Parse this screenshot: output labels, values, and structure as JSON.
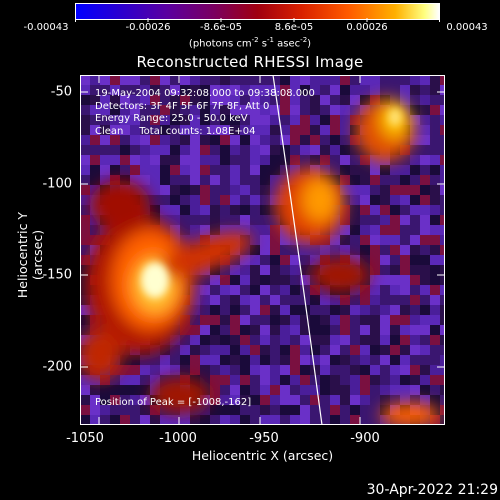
{
  "colorbar": {
    "ticks": [
      "-0.00043",
      "-0.00026",
      "-8.6e-05",
      "8.6e-05",
      "0.00026",
      "0.00043"
    ],
    "units_prefix": "(photons cm",
    "units_exp1": "-2",
    "units_mid": " s",
    "units_exp2": "-1",
    "units_mid2": " asec",
    "units_exp3": "-2",
    "units_suffix": ")"
  },
  "title": "Reconstructed RHESSI Image",
  "info": {
    "line1": "19-May-2004 09:32:08.000 to 09:38:08.000",
    "line2": "Detectors: 3F 4F 5F 6F 7F 8F, Att 0",
    "line3": "Energy Range: 25.0 - 50.0 keV",
    "line4": "Clean     Total counts: 1.08E+04",
    "peak": "Position of Peak = [-1008,-162]"
  },
  "axes": {
    "xlabel": "Heliocentric X (arcsec)",
    "ylabel": "Heliocentric Y (arcsec)",
    "xticks": [
      "-1050",
      "-1000",
      "-950",
      "-900"
    ],
    "yticks": [
      "-50",
      "-100",
      "-150",
      "-200"
    ]
  },
  "timestamp": "30-Apr-2022 21:29"
}
